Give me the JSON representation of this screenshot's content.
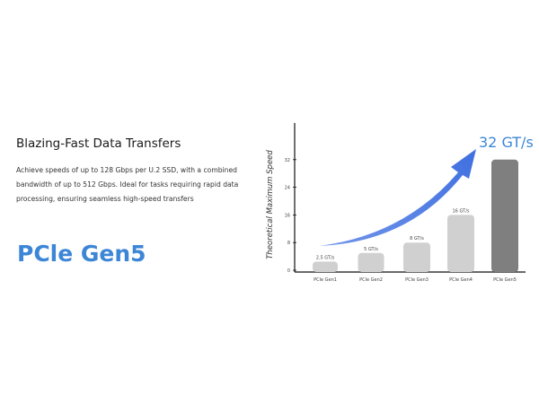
{
  "heading": "Blazing-Fast Data Transfers",
  "description": " Achieve speeds of up to 128 Gbps per U.2 SSD, with a combined bandwidth of up to 512 Gbps. Ideal for tasks requiring rapid data processing, ensuring seamless high-speed transfers",
  "badge": "PCle Gen5",
  "colors": {
    "accent": "#3d86d6",
    "arrow": "#4a78e0",
    "bar": "#d0d0d0",
    "bar_highlight": "#7f7f7f"
  },
  "chart_data": {
    "type": "bar",
    "ylabel": "Theoretical Maximum Speed",
    "xlabel": "",
    "categories": [
      "PCle Gen1",
      "PCle Gen2",
      "PCle Gen3",
      "PCle Gen4",
      "PCle Gen5"
    ],
    "values": [
      2.5,
      5,
      8,
      16,
      32
    ],
    "data_labels": [
      "2.5 GT/s",
      "5 GT/s",
      "8 GT/s",
      "16 GT/s",
      ""
    ],
    "yticks": [
      0,
      8,
      16,
      24,
      32
    ],
    "ylim": [
      0,
      42
    ],
    "highlight_label": "32 GT/s",
    "grid": false
  }
}
